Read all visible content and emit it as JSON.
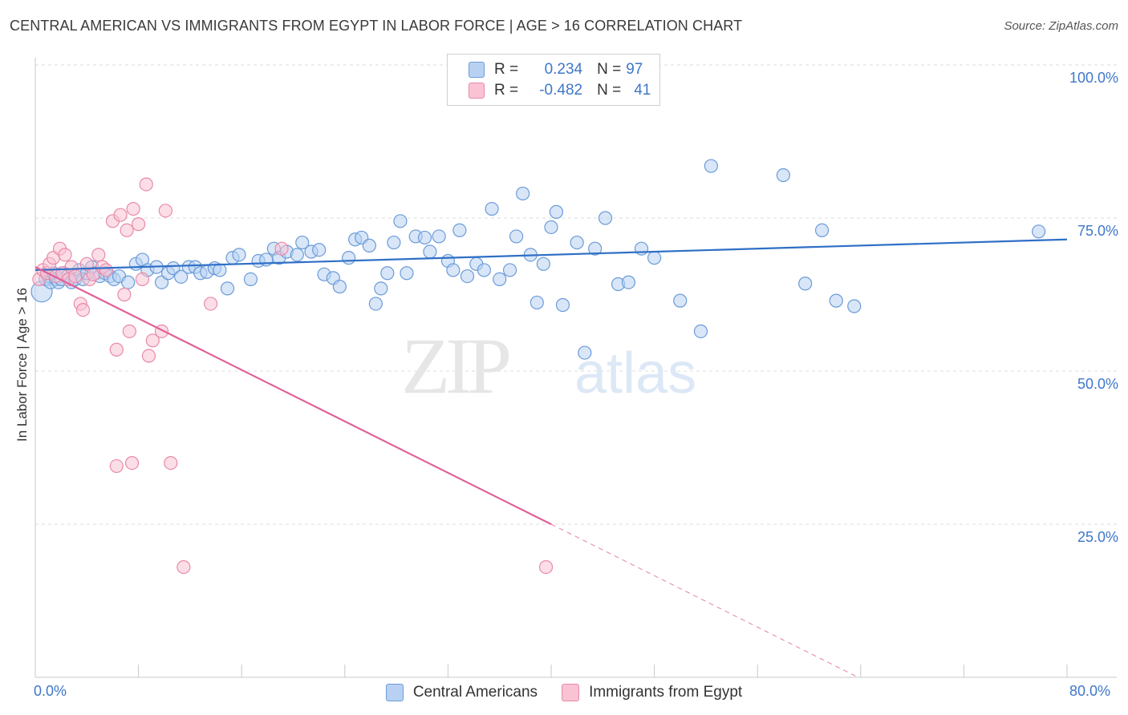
{
  "title": "CENTRAL AMERICAN VS IMMIGRANTS FROM EGYPT IN LABOR FORCE | AGE > 16 CORRELATION CHART",
  "source": "Source: ZipAtlas.com",
  "legend": {
    "rows": [
      {
        "r_label": "R =",
        "r_value": "0.234",
        "n_label": "N =",
        "n_value": "97"
      },
      {
        "r_label": "R =",
        "r_value": "-0.482",
        "n_label": "N =",
        "n_value": "41"
      }
    ]
  },
  "watermark": {
    "part1": "ZIP",
    "part2": "atlas"
  },
  "colors": {
    "blue_fill": "#b8d1f2",
    "blue_stroke": "#6b9bd8",
    "blue_line": "#2f6fc6",
    "pink_fill": "#f9c3d3",
    "pink_stroke": "#e88aa8",
    "pink_line": "#e0609a",
    "tick_label": "#3f77c9",
    "grid": "#dcdcdc"
  },
  "chart_data": {
    "type": "scatter",
    "title": "CENTRAL AMERICAN VS IMMIGRANTS FROM EGYPT IN LABOR FORCE | AGE > 16 CORRELATION CHART",
    "xlabel": "",
    "ylabel": "In Labor Force | Age > 16",
    "xlim": [
      0,
      80
    ],
    "ylim": [
      0,
      105
    ],
    "x_tick_labels": [
      "0.0%",
      "80.0%"
    ],
    "y_ticks": [
      25,
      50,
      75,
      100
    ],
    "y_tick_labels": [
      "25.0%",
      "50.0%",
      "75.0%",
      "100.0%"
    ],
    "grid": true,
    "legend_position": "top-center",
    "series": [
      {
        "name": "Central Americans",
        "color": "#6b9bd8",
        "trend": {
          "x": [
            0,
            80
          ],
          "y": [
            66.5,
            71.5
          ],
          "style": "solid"
        },
        "points": [
          {
            "x": 0.5,
            "y": 63
          },
          {
            "x": 0.8,
            "y": 65
          },
          {
            "x": 1.0,
            "y": 65.5
          },
          {
            "x": 1.2,
            "y": 64.5
          },
          {
            "x": 1.4,
            "y": 66
          },
          {
            "x": 1.6,
            "y": 65
          },
          {
            "x": 1.8,
            "y": 64.5
          },
          {
            "x": 2.0,
            "y": 65
          },
          {
            "x": 2.2,
            "y": 66
          },
          {
            "x": 2.5,
            "y": 65.5
          },
          {
            "x": 2.8,
            "y": 64.5
          },
          {
            "x": 3.1,
            "y": 65
          },
          {
            "x": 3.4,
            "y": 66.5
          },
          {
            "x": 3.7,
            "y": 65
          },
          {
            "x": 4.0,
            "y": 66
          },
          {
            "x": 4.4,
            "y": 67
          },
          {
            "x": 4.7,
            "y": 66
          },
          {
            "x": 5.0,
            "y": 65.5
          },
          {
            "x": 5.4,
            "y": 66
          },
          {
            "x": 5.8,
            "y": 65.5
          },
          {
            "x": 6.1,
            "y": 65
          },
          {
            "x": 6.5,
            "y": 65.5
          },
          {
            "x": 7.2,
            "y": 64.5
          },
          {
            "x": 7.8,
            "y": 67.5
          },
          {
            "x": 8.3,
            "y": 68.2
          },
          {
            "x": 8.7,
            "y": 66.5
          },
          {
            "x": 9.4,
            "y": 67
          },
          {
            "x": 9.8,
            "y": 64.5
          },
          {
            "x": 10.3,
            "y": 66
          },
          {
            "x": 10.7,
            "y": 66.8
          },
          {
            "x": 11.3,
            "y": 65.4
          },
          {
            "x": 11.9,
            "y": 67
          },
          {
            "x": 12.4,
            "y": 67
          },
          {
            "x": 12.8,
            "y": 66
          },
          {
            "x": 13.3,
            "y": 66.2
          },
          {
            "x": 13.9,
            "y": 66.8
          },
          {
            "x": 14.3,
            "y": 66.5
          },
          {
            "x": 14.9,
            "y": 63.5
          },
          {
            "x": 15.3,
            "y": 68.5
          },
          {
            "x": 15.8,
            "y": 69
          },
          {
            "x": 16.7,
            "y": 65
          },
          {
            "x": 17.3,
            "y": 68
          },
          {
            "x": 17.9,
            "y": 68.2
          },
          {
            "x": 18.5,
            "y": 70
          },
          {
            "x": 18.9,
            "y": 68.5
          },
          {
            "x": 19.5,
            "y": 69.5
          },
          {
            "x": 20.3,
            "y": 69
          },
          {
            "x": 20.7,
            "y": 71
          },
          {
            "x": 21.4,
            "y": 69.5
          },
          {
            "x": 22.0,
            "y": 69.8
          },
          {
            "x": 22.4,
            "y": 65.8
          },
          {
            "x": 23.1,
            "y": 65.2
          },
          {
            "x": 23.6,
            "y": 63.8
          },
          {
            "x": 24.3,
            "y": 68.5
          },
          {
            "x": 24.8,
            "y": 71.5
          },
          {
            "x": 25.3,
            "y": 71.8
          },
          {
            "x": 25.9,
            "y": 70.5
          },
          {
            "x": 26.4,
            "y": 61
          },
          {
            "x": 26.8,
            "y": 63.5
          },
          {
            "x": 27.3,
            "y": 66
          },
          {
            "x": 27.8,
            "y": 71
          },
          {
            "x": 28.3,
            "y": 74.5
          },
          {
            "x": 28.8,
            "y": 66
          },
          {
            "x": 29.5,
            "y": 72
          },
          {
            "x": 30.2,
            "y": 71.8
          },
          {
            "x": 30.6,
            "y": 69.5
          },
          {
            "x": 31.3,
            "y": 72
          },
          {
            "x": 32.0,
            "y": 68
          },
          {
            "x": 32.4,
            "y": 66.5
          },
          {
            "x": 32.9,
            "y": 73
          },
          {
            "x": 33.5,
            "y": 65.5
          },
          {
            "x": 34.2,
            "y": 67.5
          },
          {
            "x": 34.8,
            "y": 66.5
          },
          {
            "x": 35.4,
            "y": 76.5
          },
          {
            "x": 36.0,
            "y": 65
          },
          {
            "x": 36.8,
            "y": 66.5
          },
          {
            "x": 37.3,
            "y": 72
          },
          {
            "x": 37.8,
            "y": 79
          },
          {
            "x": 38.4,
            "y": 69
          },
          {
            "x": 38.9,
            "y": 61.2
          },
          {
            "x": 39.4,
            "y": 67.5
          },
          {
            "x": 40.0,
            "y": 73.5
          },
          {
            "x": 40.4,
            "y": 76
          },
          {
            "x": 40.9,
            "y": 60.8
          },
          {
            "x": 42.0,
            "y": 71
          },
          {
            "x": 42.6,
            "y": 53
          },
          {
            "x": 43.4,
            "y": 70
          },
          {
            "x": 44.2,
            "y": 75
          },
          {
            "x": 45.2,
            "y": 64.2
          },
          {
            "x": 46.0,
            "y": 64.5
          },
          {
            "x": 47.0,
            "y": 70
          },
          {
            "x": 48.0,
            "y": 68.5
          },
          {
            "x": 50.0,
            "y": 61.5
          },
          {
            "x": 51.6,
            "y": 56.5
          },
          {
            "x": 52.4,
            "y": 83.5
          },
          {
            "x": 58.0,
            "y": 82
          },
          {
            "x": 59.7,
            "y": 64.3
          },
          {
            "x": 61.0,
            "y": 73
          },
          {
            "x": 62.1,
            "y": 61.5
          },
          {
            "x": 63.5,
            "y": 60.6
          },
          {
            "x": 77.8,
            "y": 72.8
          }
        ]
      },
      {
        "name": "Immigrants from Egypt",
        "color": "#e88aa8",
        "trend": {
          "x": [
            0,
            40
          ],
          "y": [
            67,
            25
          ],
          "style": "solid",
          "extended": {
            "x": [
              40,
              80
            ],
            "y": [
              25,
              -17
            ]
          }
        },
        "points": [
          {
            "x": 0.3,
            "y": 65
          },
          {
            "x": 0.6,
            "y": 66.5
          },
          {
            "x": 0.9,
            "y": 66
          },
          {
            "x": 1.1,
            "y": 67.5
          },
          {
            "x": 1.4,
            "y": 68.5
          },
          {
            "x": 1.6,
            "y": 65.5
          },
          {
            "x": 1.9,
            "y": 70
          },
          {
            "x": 2.1,
            "y": 66
          },
          {
            "x": 2.3,
            "y": 69
          },
          {
            "x": 2.6,
            "y": 65
          },
          {
            "x": 2.8,
            "y": 67
          },
          {
            "x": 3.1,
            "y": 65.5
          },
          {
            "x": 3.5,
            "y": 61
          },
          {
            "x": 3.7,
            "y": 60
          },
          {
            "x": 4.0,
            "y": 67.5
          },
          {
            "x": 4.2,
            "y": 65
          },
          {
            "x": 4.5,
            "y": 65.8
          },
          {
            "x": 4.9,
            "y": 69
          },
          {
            "x": 5.2,
            "y": 67
          },
          {
            "x": 5.5,
            "y": 66.5
          },
          {
            "x": 6.0,
            "y": 74.5
          },
          {
            "x": 6.3,
            "y": 53.5
          },
          {
            "x": 6.6,
            "y": 75.5
          },
          {
            "x": 6.9,
            "y": 62.5
          },
          {
            "x": 7.1,
            "y": 73
          },
          {
            "x": 7.3,
            "y": 56.5
          },
          {
            "x": 7.6,
            "y": 76.5
          },
          {
            "x": 8.0,
            "y": 74
          },
          {
            "x": 8.3,
            "y": 65
          },
          {
            "x": 8.6,
            "y": 80.5
          },
          {
            "x": 8.8,
            "y": 52.5
          },
          {
            "x": 9.1,
            "y": 55
          },
          {
            "x": 9.8,
            "y": 56.5
          },
          {
            "x": 10.1,
            "y": 76.2
          },
          {
            "x": 13.6,
            "y": 61
          },
          {
            "x": 19.1,
            "y": 70
          },
          {
            "x": 6.3,
            "y": 34.5
          },
          {
            "x": 7.5,
            "y": 35
          },
          {
            "x": 10.5,
            "y": 35
          },
          {
            "x": 11.5,
            "y": 18
          },
          {
            "x": 39.6,
            "y": 18
          }
        ]
      }
    ]
  },
  "bottom_legend": {
    "items": [
      "Central Americans",
      "Immigrants from Egypt"
    ]
  }
}
